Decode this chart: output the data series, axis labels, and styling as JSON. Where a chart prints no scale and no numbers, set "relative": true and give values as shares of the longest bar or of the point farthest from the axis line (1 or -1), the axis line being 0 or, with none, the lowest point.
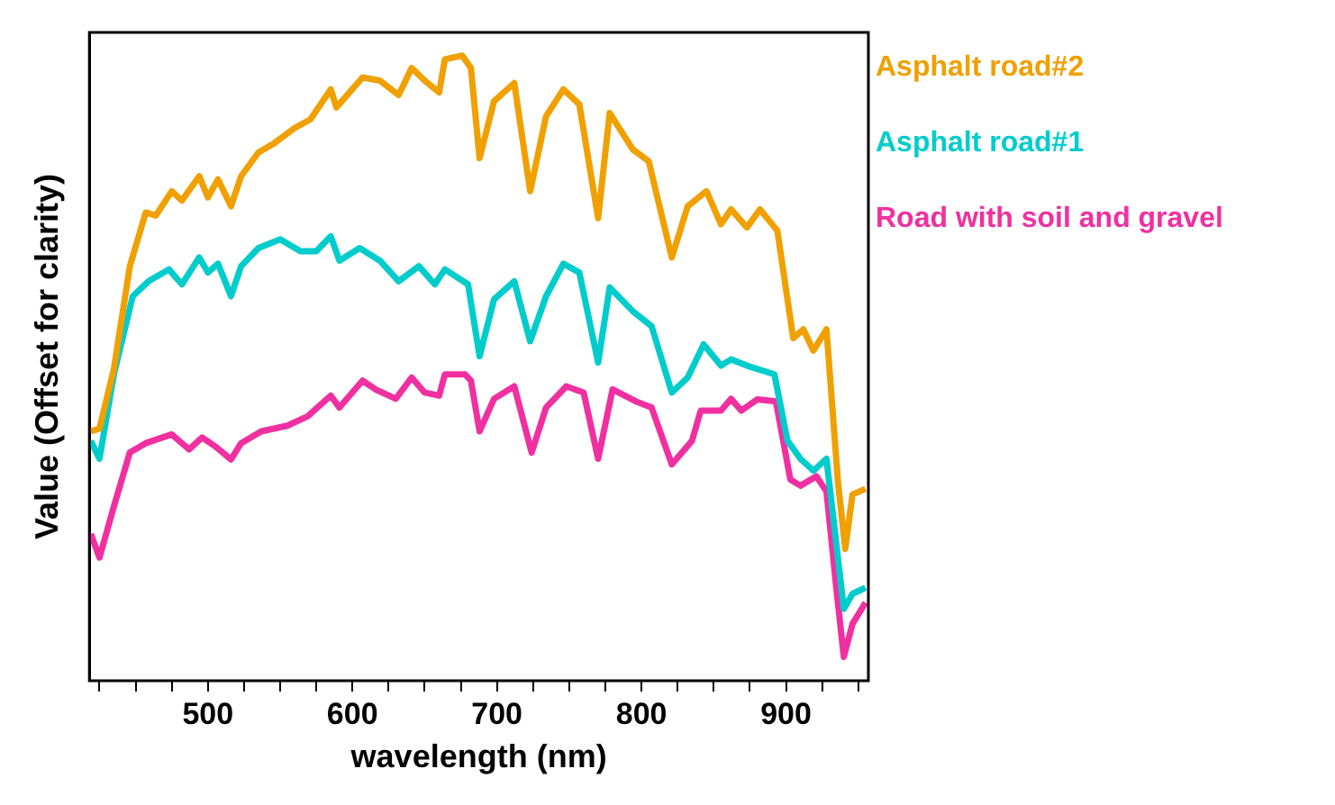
{
  "chart_data": {
    "type": "line",
    "xlabel": "wavelength (nm)",
    "ylabel": "Value (Offset for clarity)",
    "relative": true,
    "legend": "top right",
    "grid": false,
    "marker": "none",
    "line_style": "solid",
    "xlim": [
      418,
      957
    ],
    "xticks": [
      {
        "value": 425,
        "label": null
      },
      {
        "value": 450,
        "label": null
      },
      {
        "value": 475,
        "label": null
      },
      500,
      {
        "value": 525,
        "label": null
      },
      {
        "value": 550,
        "label": null
      },
      {
        "value": 575,
        "label": null
      },
      600,
      {
        "value": 625,
        "label": null
      },
      {
        "value": 650,
        "label": null
      },
      {
        "value": 675,
        "label": null
      },
      700,
      {
        "value": 725,
        "label": null
      },
      {
        "value": 750,
        "label": null
      },
      {
        "value": 775,
        "label": null
      },
      800,
      {
        "value": 825,
        "label": null
      },
      {
        "value": 850,
        "label": null
      },
      {
        "value": 875,
        "label": null
      },
      900,
      {
        "value": 925,
        "label": null
      },
      {
        "value": 950,
        "label": null
      }
    ],
    "series": [
      {
        "name": "Asphalt road#2",
        "color": "#f0a000",
        "x": [
          419,
          425,
          435,
          446,
          457,
          464,
          475,
          482,
          494,
          500,
          507,
          516,
          523,
          535,
          546,
          560,
          571,
          585,
          589,
          598,
          607,
          619,
          632,
          641,
          650,
          660,
          664,
          676,
          682,
          688,
          698,
          712,
          723,
          734,
          746,
          757,
          770,
          778,
          794,
          805,
          821,
          832,
          845,
          855,
          862,
          873,
          882,
          894,
          905,
          912,
          919,
          928,
          936,
          941,
          946,
          955
        ],
        "values": [
          0.399,
          0.403,
          0.499,
          0.663,
          0.749,
          0.744,
          0.783,
          0.768,
          0.807,
          0.773,
          0.802,
          0.759,
          0.807,
          0.845,
          0.86,
          0.884,
          0.898,
          0.946,
          0.917,
          0.941,
          0.965,
          0.96,
          0.937,
          0.98,
          0.96,
          0.941,
          0.994,
          1,
          0.98,
          0.836,
          0.927,
          0.956,
          0.783,
          0.903,
          0.946,
          0.922,
          0.74,
          0.908,
          0.85,
          0.831,
          0.677,
          0.759,
          0.783,
          0.73,
          0.754,
          0.725,
          0.754,
          0.72,
          0.548,
          0.562,
          0.528,
          0.562,
          0.317,
          0.211,
          0.298,
          0.307
        ]
      },
      {
        "name": "Asphalt road#1",
        "color": "#00cccc",
        "x": [
          419,
          425,
          435,
          448,
          459,
          473,
          482,
          494,
          500,
          507,
          516,
          523,
          535,
          550,
          564,
          575,
          585,
          591,
          605,
          619,
          632,
          646,
          657,
          664,
          680,
          688,
          698,
          712,
          723,
          734,
          746,
          757,
          770,
          778,
          794,
          807,
          821,
          832,
          843,
          855,
          862,
          873,
          892,
          901,
          910,
          919,
          928,
          940,
          946,
          955
        ],
        "values": [
          0.384,
          0.355,
          0.49,
          0.615,
          0.639,
          0.658,
          0.634,
          0.677,
          0.653,
          0.667,
          0.615,
          0.663,
          0.692,
          0.706,
          0.687,
          0.687,
          0.711,
          0.672,
          0.692,
          0.672,
          0.639,
          0.663,
          0.634,
          0.658,
          0.634,
          0.519,
          0.61,
          0.639,
          0.543,
          0.615,
          0.667,
          0.653,
          0.509,
          0.629,
          0.591,
          0.567,
          0.461,
          0.485,
          0.538,
          0.504,
          0.514,
          0.504,
          0.49,
          0.384,
          0.355,
          0.336,
          0.355,
          0.115,
          0.139,
          0.149
        ]
      },
      {
        "name": "Road with soil and gravel",
        "color": "#f030a0",
        "x": [
          419,
          425,
          435,
          446,
          457,
          475,
          487,
          496,
          505,
          516,
          523,
          537,
          555,
          569,
          585,
          591,
          607,
          616,
          630,
          641,
          650,
          660,
          664,
          678,
          682,
          688,
          698,
          712,
          724,
          734,
          748,
          760,
          770,
          780,
          796,
          807,
          821,
          835,
          841,
          855,
          862,
          869,
          880,
          893,
          903,
          910,
          921,
          928,
          935,
          940,
          946,
          955
        ],
        "values": [
          0.235,
          0.197,
          0.279,
          0.365,
          0.38,
          0.394,
          0.37,
          0.389,
          0.375,
          0.354,
          0.38,
          0.399,
          0.408,
          0.423,
          0.456,
          0.437,
          0.48,
          0.466,
          0.451,
          0.485,
          0.461,
          0.456,
          0.49,
          0.49,
          0.48,
          0.399,
          0.451,
          0.471,
          0.365,
          0.437,
          0.471,
          0.461,
          0.355,
          0.466,
          0.447,
          0.437,
          0.346,
          0.384,
          0.432,
          0.432,
          0.451,
          0.432,
          0.45,
          0.447,
          0.322,
          0.312,
          0.327,
          0.303,
          0.144,
          0.038,
          0.091,
          0.125
        ]
      }
    ]
  }
}
